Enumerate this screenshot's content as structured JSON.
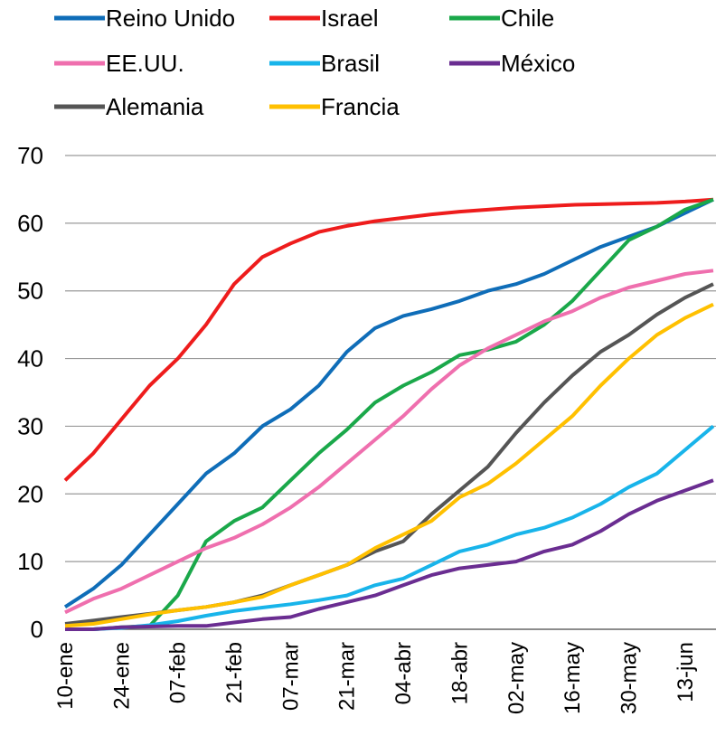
{
  "chart_data": {
    "type": "line",
    "categories": [
      "10-ene",
      null,
      "24-ene",
      null,
      "07-feb",
      null,
      "21-feb",
      null,
      "07-mar",
      null,
      "21-mar",
      null,
      "04-abr",
      null,
      "18-abr",
      null,
      "02-may",
      null,
      "16-may",
      null,
      "30-may",
      null,
      "13-jun",
      null
    ],
    "series": [
      {
        "name": "Reino Unido",
        "color": "#0f6db8",
        "values": [
          3.3,
          6,
          9.5,
          14,
          18.5,
          23,
          26,
          30,
          32.5,
          36,
          41,
          44.5,
          46.3,
          47.3,
          48.5,
          50,
          51,
          52.5,
          54.5,
          56.5,
          58,
          59.5,
          61.5,
          63.5
        ]
      },
      {
        "name": "Israel",
        "color": "#ee1c1c",
        "values": [
          22,
          26,
          31,
          36,
          40,
          45,
          51,
          55,
          57,
          58.7,
          59.6,
          60.3,
          60.8,
          61.3,
          61.7,
          62,
          62.3,
          62.5,
          62.7,
          62.8,
          62.9,
          63,
          63.2,
          63.5
        ]
      },
      {
        "name": "Chile",
        "color": "#1aa84a",
        "values": [
          0,
          0,
          0.3,
          0.5,
          5,
          13,
          16,
          18,
          22,
          26,
          29.5,
          33.5,
          36,
          38,
          40.5,
          41.3,
          42.5,
          45,
          48.5,
          53,
          57.5,
          59.5,
          62,
          63.5
        ]
      },
      {
        "name": "EE.UU.",
        "color": "#ef6fae",
        "values": [
          2.5,
          4.5,
          6,
          8,
          10,
          12,
          13.5,
          15.5,
          18,
          21,
          24.5,
          28,
          31.5,
          35.5,
          39,
          41.5,
          43.5,
          45.5,
          47,
          49,
          50.5,
          51.5,
          52.5,
          53
        ]
      },
      {
        "name": "Brasil",
        "color": "#18b4ea",
        "values": [
          0,
          0,
          0.2,
          0.6,
          1.2,
          2,
          2.7,
          3.2,
          3.7,
          4.3,
          5,
          6.5,
          7.5,
          9.5,
          11.5,
          12.5,
          14,
          15,
          16.5,
          18.5,
          21,
          23,
          26.5,
          30
        ]
      },
      {
        "name": "México",
        "color": "#6a2d91",
        "values": [
          0,
          0,
          0.3,
          0.4,
          0.5,
          0.5,
          1,
          1.5,
          1.8,
          3,
          4,
          5,
          6.5,
          8,
          9,
          9.5,
          10,
          11.5,
          12.5,
          14.5,
          17,
          19,
          20.5,
          22
        ]
      },
      {
        "name": "Alemania",
        "color": "#555555",
        "values": [
          0.8,
          1.3,
          1.8,
          2.3,
          2.8,
          3.3,
          4,
          5,
          6.5,
          8,
          9.5,
          11.5,
          13,
          17,
          20.5,
          24,
          29,
          33.5,
          37.5,
          41,
          43.5,
          46.5,
          49,
          51
        ]
      },
      {
        "name": "Francia",
        "color": "#ffc000",
        "values": [
          0.5,
          0.8,
          1.5,
          2.2,
          2.8,
          3.3,
          4,
          4.8,
          6.5,
          8,
          9.5,
          12,
          14,
          16,
          19.5,
          21.5,
          24.5,
          28,
          31.5,
          36,
          40,
          43.5,
          46,
          48
        ]
      }
    ],
    "ylim": [
      0,
      70
    ],
    "yticks": [
      0,
      10,
      20,
      30,
      40,
      50,
      60,
      70
    ],
    "grid": true
  }
}
